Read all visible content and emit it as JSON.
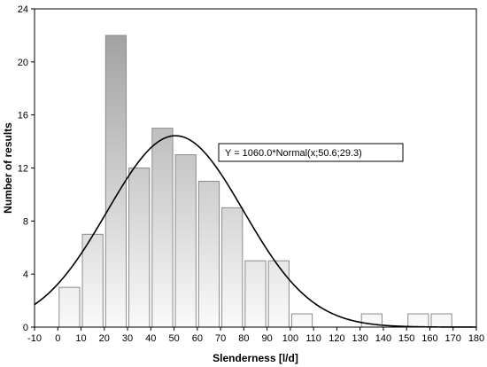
{
  "chart_data": {
    "type": "bar",
    "xlabel": "Slenderness [l/d]",
    "ylabel": "Number of results",
    "xlim": [
      -10,
      180
    ],
    "ylim": [
      0,
      24
    ],
    "x_ticks": [
      -10,
      0,
      10,
      20,
      30,
      40,
      50,
      60,
      70,
      80,
      90,
      100,
      110,
      120,
      130,
      140,
      150,
      160,
      170,
      180
    ],
    "y_ticks": [
      0,
      4,
      8,
      12,
      16,
      20,
      24
    ],
    "bin_width": 10,
    "bins": [
      {
        "start": 0,
        "value": 3
      },
      {
        "start": 10,
        "value": 7
      },
      {
        "start": 20,
        "value": 22
      },
      {
        "start": 30,
        "value": 12
      },
      {
        "start": 40,
        "value": 15
      },
      {
        "start": 50,
        "value": 13
      },
      {
        "start": 60,
        "value": 11
      },
      {
        "start": 70,
        "value": 9
      },
      {
        "start": 80,
        "value": 5
      },
      {
        "start": 90,
        "value": 5
      },
      {
        "start": 100,
        "value": 1
      },
      {
        "start": 130,
        "value": 1
      },
      {
        "start": 150,
        "value": 1
      },
      {
        "start": 160,
        "value": 1
      }
    ],
    "fit": {
      "scale": 1060.0,
      "mean": 50.6,
      "sd": 29.3
    },
    "annotation": "Y = 1060.0*Normal(x;50.6;29.3)",
    "grid": false,
    "colors": {
      "bar_light": "#fafafa",
      "bar_dark": "#9a9a9a",
      "bar_stroke": "#8c8c8c",
      "curve": "#000000"
    }
  }
}
